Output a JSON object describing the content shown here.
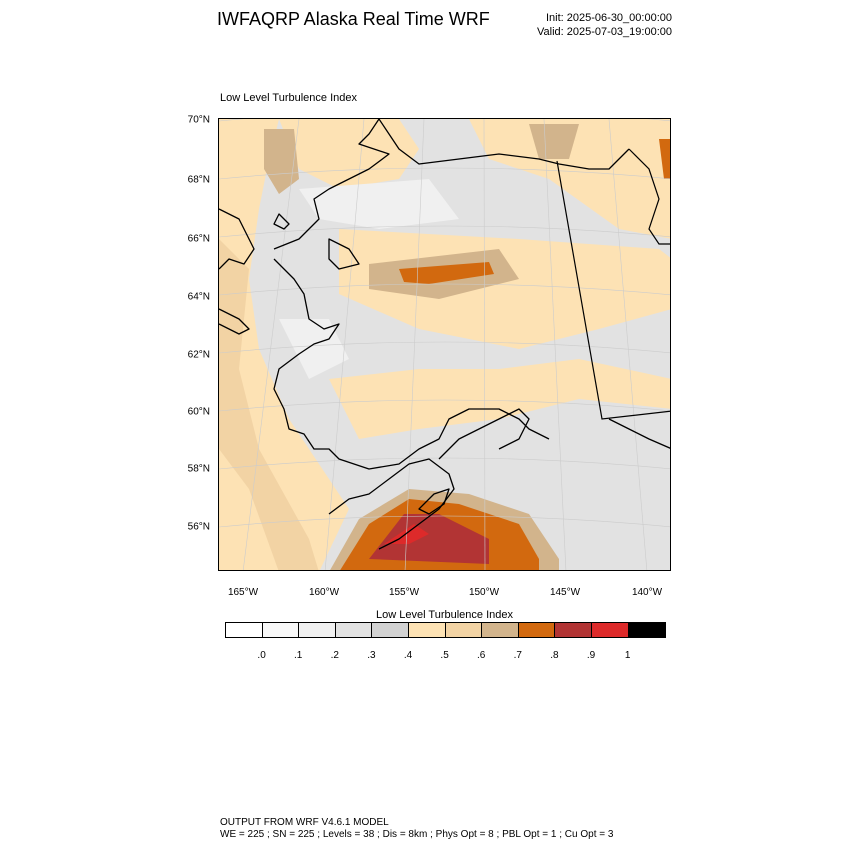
{
  "header": {
    "title": "IWFAQRP Alaska Real Time WRF",
    "init": "Init: 2025-06-30_00:00:00",
    "valid": "Valid: 2025-07-03_19:00:00"
  },
  "plot": {
    "title": "Low Level Turbulence Index",
    "lat_labels": [
      "70°N",
      "68°N",
      "66°N",
      "64°N",
      "62°N",
      "60°N",
      "58°N",
      "56°N"
    ],
    "lon_labels": [
      "165°W",
      "160°W",
      "155°W",
      "150°W",
      "145°W",
      "140°W"
    ]
  },
  "colorbar": {
    "title": "Low Level Turbulence Index",
    "colors": [
      "#ffffff",
      "#f8f8f8",
      "#f0f0f0",
      "#e2e2e2",
      "#d2d2d2",
      "#fde2b4",
      "#f2d3a4",
      "#d2b48c",
      "#d2690f",
      "#b23434",
      "#dd2a2a",
      "#000000"
    ],
    "labels": [
      ".0",
      ".1",
      ".2",
      ".3",
      ".4",
      ".5",
      ".6",
      ".7",
      ".8",
      ".9",
      "1"
    ]
  },
  "footer": {
    "line1": "OUTPUT FROM WRF V4.6.1 MODEL",
    "line2": "WE = 225 ; SN = 225 ; Levels = 38 ; Dis = 8km ; Phys Opt = 8 ; PBL Opt = 1 ; Cu Opt = 3"
  }
}
